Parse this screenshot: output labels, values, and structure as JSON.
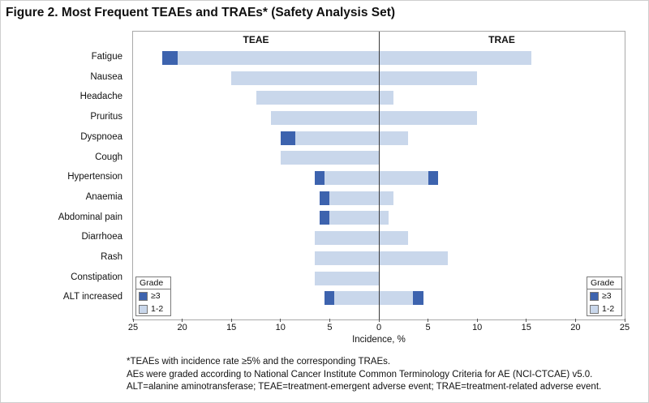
{
  "figure": {
    "title": "Figure 2. Most Frequent TEAEs and TRAEs* (Safety Analysis Set)"
  },
  "colors": {
    "grade12": "#c9d7eb",
    "grade3": "#3d63ae",
    "plot_border": "#a9a9a9",
    "zero_line": "#3a3a3a"
  },
  "chart_data": {
    "type": "bar",
    "subtype": "diverging-stacked-horizontal-butterfly",
    "left_panel_label": "TEAE",
    "right_panel_label": "TRAE",
    "xlabel": "Incidence, %",
    "x_ticks": [
      25,
      20,
      15,
      10,
      5,
      0,
      5,
      10,
      15,
      20,
      25
    ],
    "x_max_each_side": 25,
    "grid": false,
    "categories": [
      "Fatigue",
      "Nausea",
      "Headache",
      "Pruritus",
      "Dyspnoea",
      "Cough",
      "Hypertension",
      "Anaemia",
      "Abdominal pain",
      "Diarrhoea",
      "Rash",
      "Constipation",
      "ALT increased"
    ],
    "series": [
      {
        "name": "TEAE Grade 1-2",
        "panel": "left",
        "grade": "1-2",
        "color": "#c9d7eb",
        "values": [
          20.5,
          15,
          12.5,
          11,
          8.5,
          10,
          5.5,
          5,
          5,
          6.5,
          6.5,
          6.5,
          4.5
        ]
      },
      {
        "name": "TEAE Grade ≥3",
        "panel": "left",
        "grade": "≥3",
        "color": "#3d63ae",
        "values": [
          1.5,
          0,
          0,
          0,
          1.5,
          0,
          1,
          1,
          1,
          0,
          0,
          0,
          1
        ]
      },
      {
        "name": "TRAE Grade 1-2",
        "panel": "right",
        "grade": "1-2",
        "color": "#c9d7eb",
        "values": [
          15.5,
          10,
          1.5,
          10,
          3,
          0,
          5,
          1.5,
          1,
          3,
          7,
          0,
          3.5
        ]
      },
      {
        "name": "TRAE Grade ≥3",
        "panel": "right",
        "grade": "≥3",
        "color": "#3d63ae",
        "values": [
          0,
          0,
          0,
          0,
          0,
          0,
          1,
          0,
          0,
          0,
          0,
          0,
          1
        ]
      }
    ],
    "legend": {
      "title": "Grade",
      "entries": [
        {
          "label": "≥3",
          "color": "#3d63ae"
        },
        {
          "label": "1-2",
          "color": "#c9d7eb"
        }
      ],
      "positions": [
        "bottom-left",
        "bottom-right"
      ]
    }
  },
  "footnotes": [
    "*TEAEs with incidence rate ≥5% and the corresponding TRAEs.",
    "AEs were graded according to National Cancer Institute Common Terminology Criteria for AE (NCI-CTCAE) v5.0.",
    "ALT=alanine aminotransferase; TEAE=treatment-emergent adverse event; TRAE=treatment-related adverse event."
  ]
}
